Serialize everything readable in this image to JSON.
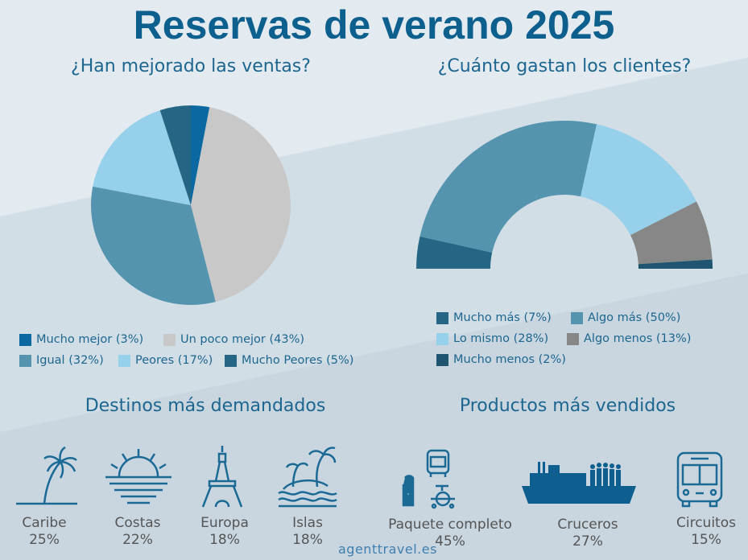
{
  "title": "Reservas de verano 2025",
  "chart_data": [
    {
      "type": "pie",
      "title": "¿Han mejorado las ventas?",
      "categories": [
        "Mucho mejor",
        "Un poco mejor",
        "Igual",
        "Peores",
        "Mucho Peores"
      ],
      "values": [
        3,
        43,
        32,
        17,
        5
      ],
      "colors": [
        "#0b68a0",
        "#c8c8c8",
        "#5594ae",
        "#96d0ea",
        "#246683"
      ],
      "legend_labels": [
        "Mucho mejor (3%)",
        "Un poco mejor (43%)",
        "Igual (32%)",
        "Peores (17%)",
        "Mucho Peores (5%)"
      ]
    },
    {
      "type": "pie",
      "subtype": "half-donut",
      "title": "¿Cuánto gastan los clientes?",
      "categories": [
        "Mucho más",
        "Algo más",
        "Lo mismo",
        "Algo menos",
        "Mucho menos"
      ],
      "values": [
        7,
        50,
        28,
        13,
        2
      ],
      "colors": [
        "#246683",
        "#5594ae",
        "#96d0ea",
        "#878787",
        "#1f5570"
      ],
      "legend_labels": [
        "Mucho más (7%)",
        "Algo más (50%)",
        "Lo mismo (28%)",
        "Algo menos (13%)",
        "Mucho menos (2%)"
      ]
    }
  ],
  "destinos": {
    "title": "Destinos más demandados",
    "items": [
      {
        "label": "Caribe",
        "value": "25%",
        "icon": "palm-tree"
      },
      {
        "label": "Costas",
        "value": "22%",
        "icon": "sunset"
      },
      {
        "label": "Europa",
        "value": "18%",
        "icon": "eiffel-tower"
      },
      {
        "label": "Islas",
        "value": "18%",
        "icon": "island"
      }
    ]
  },
  "productos": {
    "title": "Productos más vendidos",
    "items": [
      {
        "label": "Paquete completo",
        "value": "45%",
        "icon": "package"
      },
      {
        "label": "Cruceros",
        "value": "27%",
        "icon": "cruise-ship"
      },
      {
        "label": "Circuitos",
        "value": "15%",
        "icon": "bus"
      }
    ]
  },
  "brand": "agenttravel.es"
}
